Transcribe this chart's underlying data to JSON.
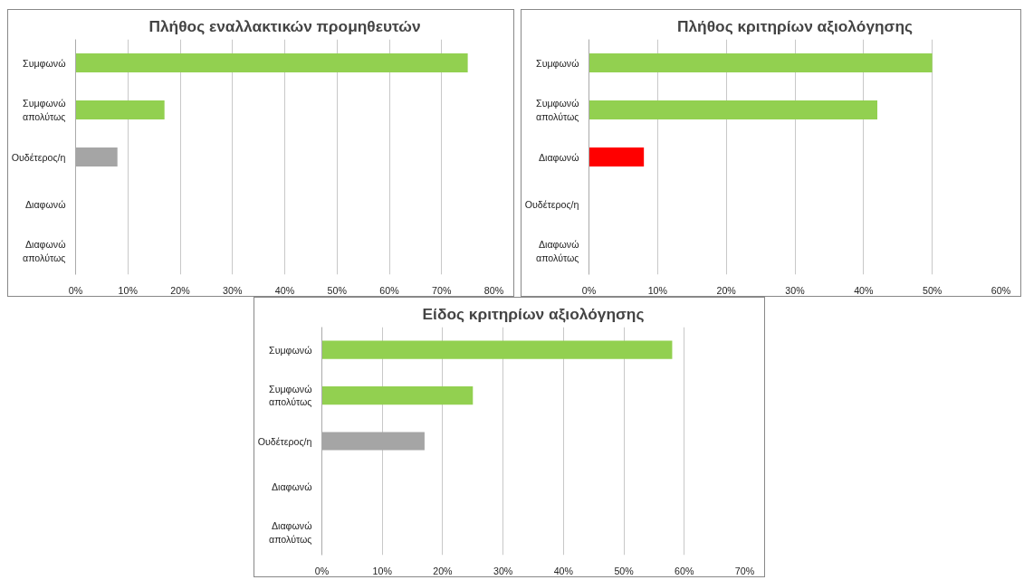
{
  "chart_data": [
    {
      "type": "bar",
      "orientation": "horizontal",
      "title": "Πλήθος εναλλακτικών προμηθευτών",
      "categories": [
        "Συμφωνώ",
        "Συμφωνώ απολύτως",
        "Ουδέτερος/η",
        "Διαφωνώ",
        "Διαφωνώ απολύτως"
      ],
      "values": [
        75,
        17,
        8,
        0,
        0
      ],
      "colors": [
        "#92d050",
        "#92d050",
        "#a5a5a5",
        "#ff0000",
        "#ff0000"
      ],
      "xlim": [
        0,
        80
      ],
      "xticks": [
        {
          "value": 0,
          "label": "0%"
        },
        {
          "value": 10,
          "label": "10%"
        },
        {
          "value": 20,
          "label": "20%"
        },
        {
          "value": 30,
          "label": "30%"
        },
        {
          "value": 40,
          "label": "40%"
        },
        {
          "value": 50,
          "label": "50%"
        },
        {
          "value": 60,
          "label": "60%"
        },
        {
          "value": 70,
          "label": "70%"
        },
        {
          "value": 80,
          "label": "80%"
        }
      ],
      "grid": "x"
    },
    {
      "type": "bar",
      "orientation": "horizontal",
      "title": "Πλήθος κριτηρίων αξιολόγησης",
      "categories": [
        "Συμφωνώ",
        "Συμφωνώ απολύτως",
        "Διαφωνώ",
        "Ουδέτερος/η",
        "Διαφωνώ απολύτως"
      ],
      "values": [
        50,
        42,
        8,
        0,
        0
      ],
      "colors": [
        "#92d050",
        "#92d050",
        "#ff0000",
        "#a5a5a5",
        "#ff0000"
      ],
      "xlim": [
        0,
        60
      ],
      "xticks": [
        {
          "value": 0,
          "label": "0%"
        },
        {
          "value": 10,
          "label": "10%"
        },
        {
          "value": 20,
          "label": "20%"
        },
        {
          "value": 30,
          "label": "30%"
        },
        {
          "value": 40,
          "label": "40%"
        },
        {
          "value": 50,
          "label": "50%"
        },
        {
          "value": 60,
          "label": "60%"
        }
      ],
      "grid": "x"
    },
    {
      "type": "bar",
      "orientation": "horizontal",
      "title": "Είδος κριτηρίων αξιολόγησης",
      "categories": [
        "Συμφωνώ",
        "Συμφωνώ απολύτως",
        "Ουδέτερος/η",
        "Διαφωνώ",
        "Διαφωνώ απολύτως"
      ],
      "values": [
        58,
        25,
        17,
        0,
        0
      ],
      "colors": [
        "#92d050",
        "#92d050",
        "#a5a5a5",
        "#ff0000",
        "#ff0000"
      ],
      "xlim": [
        0,
        70
      ],
      "xticks": [
        {
          "value": 0,
          "label": "0%"
        },
        {
          "value": 10,
          "label": "10%"
        },
        {
          "value": 20,
          "label": "20%"
        },
        {
          "value": 30,
          "label": "30%"
        },
        {
          "value": 40,
          "label": "40%"
        },
        {
          "value": 50,
          "label": "50%"
        },
        {
          "value": 60,
          "label": "60%"
        },
        {
          "value": 70,
          "label": "70%"
        }
      ],
      "grid": "x"
    }
  ]
}
